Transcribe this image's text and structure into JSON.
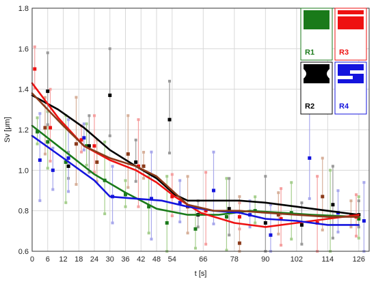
{
  "chart_data": {
    "type": "line",
    "title": "",
    "xlabel": "t [s]",
    "ylabel": "Sv [μm]",
    "xlim": [
      0,
      130
    ],
    "ylim": [
      0.6,
      1.8
    ],
    "x_ticks": [
      0,
      6,
      12,
      18,
      24,
      30,
      36,
      42,
      48,
      54,
      66,
      78,
      90,
      102,
      114,
      126
    ],
    "y_ticks": [
      0.6,
      0.8,
      1.0,
      1.2,
      1.4,
      1.6,
      1.8
    ],
    "grid": true,
    "legend_position": "top-right",
    "series": [
      {
        "name": "R1",
        "color": "#1a7a1a",
        "light_color": "#a6cf8e",
        "icon": "solid-block",
        "trend": [
          [
            0,
            1.22
          ],
          [
            12,
            1.1
          ],
          [
            24,
            0.98
          ],
          [
            36,
            0.89
          ],
          [
            48,
            0.81
          ],
          [
            60,
            0.78
          ],
          [
            72,
            0.78
          ],
          [
            84,
            0.8
          ],
          [
            96,
            0.79
          ],
          [
            108,
            0.78
          ],
          [
            126,
            0.77
          ]
        ],
        "points": [
          [
            2,
            1.19
          ],
          [
            6,
            1.14
          ],
          [
            13,
            1.04
          ],
          [
            21,
            1.12
          ],
          [
            28,
            0.95
          ],
          [
            36,
            0.88
          ],
          [
            45,
            0.82
          ],
          [
            52,
            0.74
          ],
          [
            63,
            0.71
          ],
          [
            75,
            0.77
          ],
          [
            86,
            0.8
          ],
          [
            100,
            0.79
          ],
          [
            115,
            0.77
          ],
          [
            126,
            0.76
          ]
        ]
      },
      {
        "name": "R2",
        "color": "#000000",
        "light_color": "#9a9a9a",
        "icon": "notched-block",
        "trend": [
          [
            0,
            1.37
          ],
          [
            10,
            1.3
          ],
          [
            20,
            1.21
          ],
          [
            30,
            1.1
          ],
          [
            40,
            1.02
          ],
          [
            48,
            0.96
          ],
          [
            55,
            0.88
          ],
          [
            60,
            0.85
          ],
          [
            70,
            0.85
          ],
          [
            80,
            0.85
          ],
          [
            90,
            0.84
          ],
          [
            102,
            0.82
          ],
          [
            114,
            0.8
          ],
          [
            126,
            0.78
          ]
        ],
        "points": [
          [
            6,
            1.39
          ],
          [
            14,
            1.02
          ],
          [
            22,
            1.12
          ],
          [
            30,
            1.37
          ],
          [
            40,
            1.04
          ],
          [
            53,
            1.25
          ],
          [
            64,
            0.78
          ],
          [
            76,
            0.81
          ],
          [
            90,
            0.74
          ],
          [
            104,
            0.73
          ],
          [
            116,
            0.83
          ],
          [
            126,
            0.78
          ]
        ]
      },
      {
        "name": "R3",
        "color": "#ee1111",
        "light_color": "#f5a0a0",
        "icon": "striped-block",
        "trend": [
          [
            0,
            1.43
          ],
          [
            10,
            1.26
          ],
          [
            20,
            1.12
          ],
          [
            30,
            1.05
          ],
          [
            40,
            1.0
          ],
          [
            48,
            0.94
          ],
          [
            55,
            0.87
          ],
          [
            65,
            0.79
          ],
          [
            78,
            0.74
          ],
          [
            90,
            0.72
          ],
          [
            102,
            0.74
          ],
          [
            114,
            0.76
          ],
          [
            126,
            0.78
          ]
        ],
        "points": [
          [
            1,
            1.5
          ],
          [
            7,
            1.21
          ],
          [
            19,
            1.15
          ],
          [
            24,
            1.12
          ],
          [
            41,
            1.02
          ],
          [
            54,
            0.87
          ],
          [
            67,
            0.8
          ],
          [
            80,
            0.77
          ],
          [
            96,
            0.76
          ],
          [
            110,
            0.74
          ],
          [
            125,
            0.77
          ]
        ]
      },
      {
        "name": "R4",
        "color": "#1414dd",
        "light_color": "#a8a8ec",
        "icon": "profile-block",
        "trend": [
          [
            0,
            1.17
          ],
          [
            12,
            1.06
          ],
          [
            24,
            0.95
          ],
          [
            30,
            0.87
          ],
          [
            40,
            0.86
          ],
          [
            50,
            0.85
          ],
          [
            60,
            0.82
          ],
          [
            70,
            0.8
          ],
          [
            80,
            0.79
          ],
          [
            90,
            0.76
          ],
          [
            102,
            0.75
          ],
          [
            114,
            0.73
          ],
          [
            126,
            0.73
          ]
        ],
        "points": [
          [
            3,
            1.05
          ],
          [
            8,
            1.0
          ],
          [
            14,
            1.06
          ],
          [
            20,
            1.16
          ],
          [
            31,
            0.87
          ],
          [
            46,
            0.86
          ],
          [
            57,
            0.84
          ],
          [
            70,
            0.9
          ],
          [
            84,
            0.78
          ],
          [
            92,
            0.68
          ],
          [
            107,
            1.06
          ],
          [
            118,
            0.79
          ],
          [
            128,
            0.75
          ]
        ]
      },
      {
        "name": "",
        "color": "#8b3a1a",
        "light_color": "#d7b09a",
        "icon": "",
        "trend": [
          [
            0,
            1.38
          ],
          [
            12,
            1.22
          ],
          [
            20,
            1.12
          ],
          [
            30,
            1.06
          ],
          [
            40,
            1.02
          ],
          [
            48,
            0.97
          ],
          [
            54,
            0.9
          ],
          [
            60,
            0.83
          ],
          [
            70,
            0.8
          ],
          [
            80,
            0.8
          ],
          [
            90,
            0.79
          ],
          [
            102,
            0.78
          ],
          [
            114,
            0.77
          ],
          [
            126,
            0.77
          ]
        ],
        "points": [
          [
            5,
            1.21
          ],
          [
            17,
            1.13
          ],
          [
            25,
            1.04
          ],
          [
            37,
            1.08
          ],
          [
            43,
            1.02
          ],
          [
            60,
            0.82
          ],
          [
            80,
            0.64
          ],
          [
            95,
            0.78
          ],
          [
            112,
            0.87
          ],
          [
            123,
            0.78
          ]
        ]
      }
    ],
    "legend": [
      {
        "label": "R1",
        "color": "#1a7a1a",
        "icon": "solid-block"
      },
      {
        "label": "R3",
        "color": "#ee1111",
        "icon": "striped-block"
      },
      {
        "label": "R2",
        "color": "#000000",
        "icon": "notched-block"
      },
      {
        "label": "R4",
        "color": "#1414dd",
        "icon": "profile-block"
      }
    ]
  }
}
